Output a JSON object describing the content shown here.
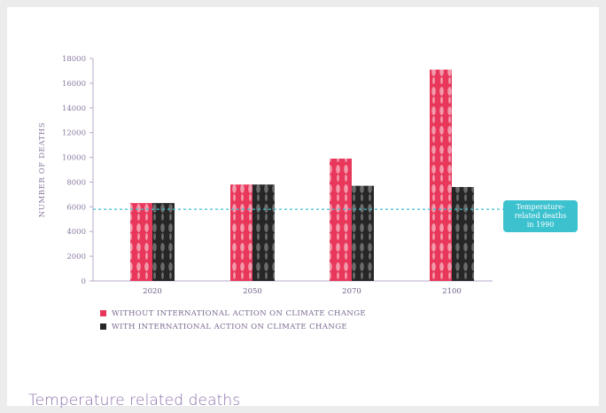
{
  "chart_data": {
    "type": "bar",
    "categories": [
      "2020",
      "2050",
      "2070",
      "2100"
    ],
    "series": [
      {
        "name": "WITHOUT INTERNATIONAL ACTION ON CLIMATE CHANGE",
        "values": [
          6300,
          7800,
          9900,
          17100
        ],
        "color": "#e8375a"
      },
      {
        "name": "WITH INTERNATIONAL ACTION ON CLIMATE CHANGE",
        "values": [
          6300,
          7800,
          7700,
          7600
        ],
        "color": "#2d2d2d"
      }
    ],
    "ylabel": "NUMBER OF DEATHS",
    "ylim": [
      0,
      18000
    ],
    "yticks": [
      0,
      2000,
      4000,
      6000,
      8000,
      10000,
      12000,
      14000,
      16000,
      18000
    ],
    "reference_line": {
      "value": 5800,
      "label": "Temperature-\nrelated deaths\nin 1990",
      "color": "#3cc1cf"
    },
    "grid": false,
    "legend_position": "bottom-left"
  },
  "caption": "Temperature related deaths"
}
